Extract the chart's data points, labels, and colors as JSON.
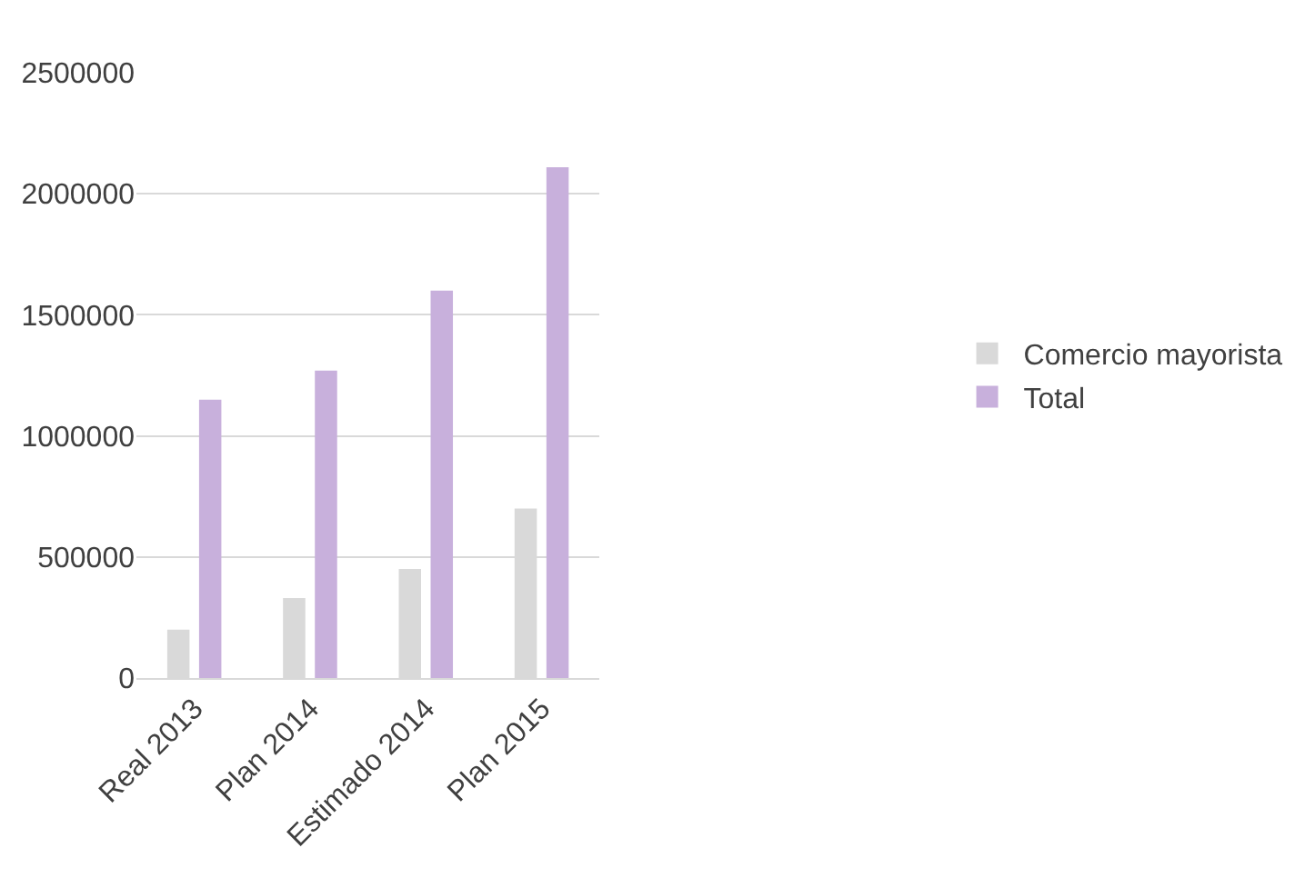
{
  "chart_data": {
    "type": "bar",
    "categories": [
      "Real 2013",
      "Plan 2014",
      "Estimado 2014",
      "Plan 2015"
    ],
    "series": [
      {
        "name": "Comercio mayorista",
        "color": "#d9d9d9",
        "values": [
          200000,
          330000,
          450000,
          700000
        ]
      },
      {
        "name": "Total",
        "color": "#c8b0dc",
        "values": [
          1150000,
          1270000,
          1600000,
          2110000
        ]
      }
    ],
    "ylim": [
      0,
      2500000
    ],
    "yticks": [
      0,
      500000,
      1000000,
      1500000,
      2000000,
      2500000
    ],
    "grid": "y",
    "legend": "right"
  }
}
